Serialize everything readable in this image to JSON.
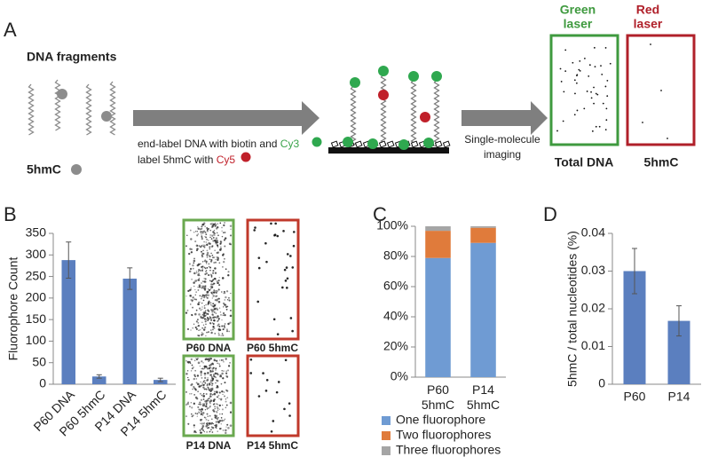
{
  "panel_labels": [
    "A",
    "B",
    "C",
    "D"
  ],
  "schematic": {
    "fragments_label": "DNA fragments",
    "marker_label": "5hmC",
    "step1_text": "end-label DNA with biotin and",
    "cy3": "Cy3",
    "step2_text": "label 5hmC with",
    "cy5": "Cy5",
    "step3_lines": [
      "Single-molecule",
      "imaging"
    ],
    "green_laser": [
      "Green",
      "laser"
    ],
    "red_laser": [
      "Red",
      "laser"
    ],
    "total_dna": "Total DNA",
    "hmc": "5hmC"
  },
  "micrographs": [
    "P60 DNA",
    "P60 5hmC",
    "P14 DNA",
    "P14 5hmC"
  ],
  "chart_data": [
    {
      "type": "bar",
      "y_label": "Fluorophore Count",
      "categories": [
        "P60 DNA",
        "P60 5hmC",
        "P14 DNA",
        "P14 5hmC"
      ],
      "values": [
        288,
        18,
        245,
        10
      ],
      "errors": [
        42,
        4,
        25,
        4
      ],
      "color": "#5b7fbf",
      "ylim": [
        0,
        350
      ],
      "yticks": [
        0,
        50,
        100,
        150,
        200,
        250,
        300,
        350
      ]
    },
    {
      "type": "stacked_bar",
      "categories": [
        "P60 5hmC",
        "P14 5hmC"
      ],
      "series": [
        {
          "name": "One fluorophore",
          "color": "#6f9bd3",
          "values": [
            79,
            89
          ]
        },
        {
          "name": "Two fluorophores",
          "color": "#e07b3b",
          "values": [
            18,
            10
          ]
        },
        {
          "name": "Three fluorophores",
          "color": "#a5a5a5",
          "values": [
            3,
            1
          ]
        }
      ],
      "ylim": [
        0,
        100
      ],
      "yticks": [
        {
          "value": 0,
          "label": "0%"
        },
        {
          "value": 20,
          "label": "20%"
        },
        {
          "value": 40,
          "label": "40%"
        },
        {
          "value": 60,
          "label": "60%"
        },
        {
          "value": 80,
          "label": "80%"
        },
        {
          "value": 100,
          "label": "100%"
        }
      ]
    },
    {
      "type": "bar",
      "y_label": "5hmC / total nucleotides (%)",
      "categories": [
        "P60",
        "P14"
      ],
      "values": [
        0.03,
        0.0168
      ],
      "errors": [
        0.006,
        0.004
      ],
      "color": "#5b7fbf",
      "ylim": [
        0,
        0.04
      ],
      "yticks": [
        0,
        0.01,
        0.02,
        0.03,
        0.04
      ]
    }
  ]
}
